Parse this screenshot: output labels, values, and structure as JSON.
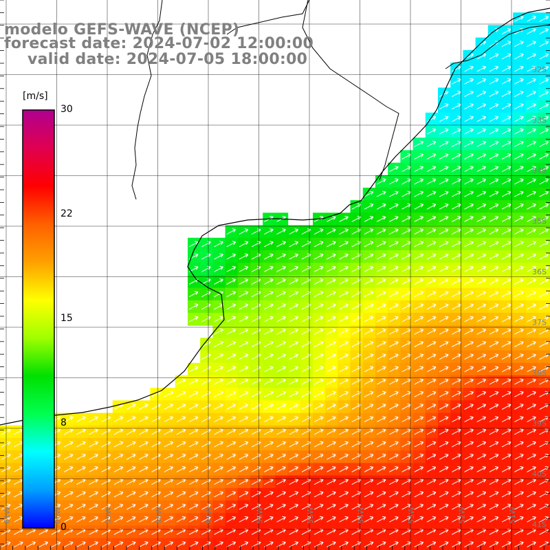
{
  "title": {
    "line1": "modelo GEFS-WAVE (NCEP)",
    "line2": "forecast date: 2024-07-02 12:00:00",
    "line3": "valid date: 2024-07-05 18:00:00"
  },
  "colorbar": {
    "unit": "[m/s]",
    "ticks": [
      "30",
      "22",
      "15",
      "8",
      "0"
    ],
    "min": 0,
    "max": 30,
    "gradient": [
      "#0000ff",
      "#00a0ff",
      "#00ffff",
      "#00ff50",
      "#00e000",
      "#a0ff00",
      "#ffff00",
      "#ffa000",
      "#ff6000",
      "#ff0000",
      "#e00050",
      "#b00090"
    ]
  },
  "lat_labels": [
    "32S",
    "33S",
    "34S",
    "35S",
    "36S",
    "37S",
    "38S",
    "39S",
    "40S",
    "41S"
  ],
  "lon_labels": [
    "61W",
    "60W",
    "59W",
    "58W",
    "57W",
    "56W",
    "55W",
    "54W",
    "53W",
    "52W",
    "51W"
  ],
  "colors": {
    "land": "#ffffff",
    "coastline": "#000000",
    "grid": "#000000",
    "arrow": "#ffffff",
    "label": "#808080"
  },
  "field": {
    "variable": "wind speed",
    "unit": "m/s",
    "direction": "towards north-east",
    "range_observed": [
      8,
      21
    ]
  }
}
